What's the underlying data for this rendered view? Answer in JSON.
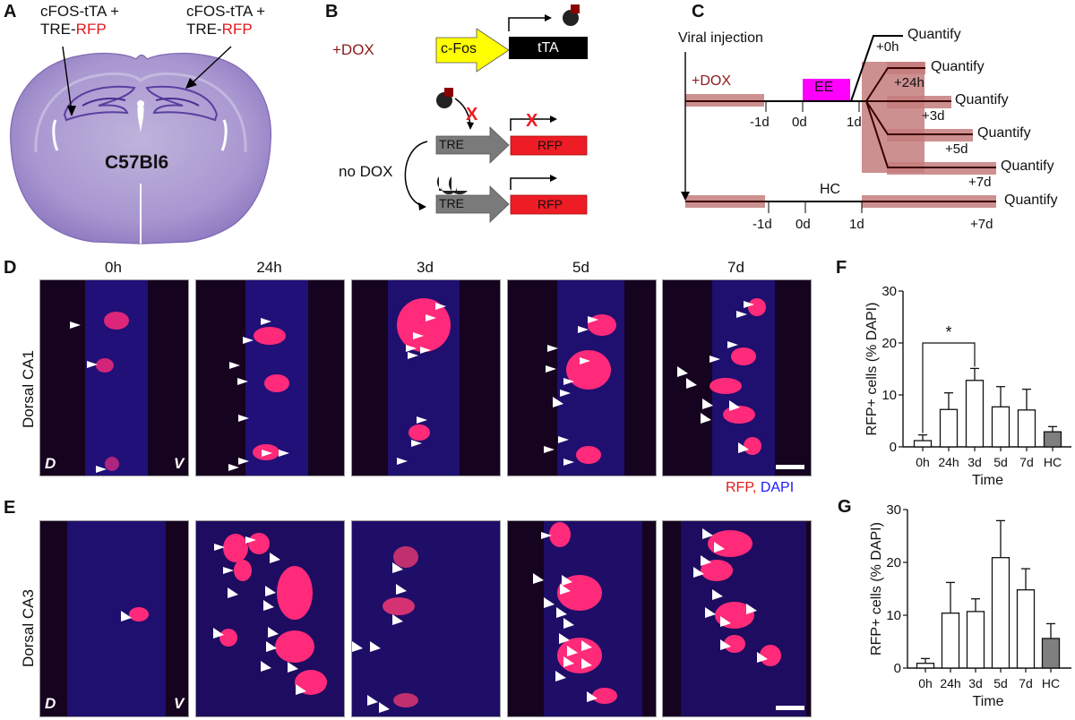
{
  "figure": {
    "panels": {
      "A": {
        "label": "A",
        "annotation_left_line1": "cFOS-tTA +",
        "annotation_left_line2_prefix": "TRE-",
        "annotation_left_line2_red": "RFP",
        "annotation_right_line1": "cFOS-tTA +",
        "annotation_right_line2_prefix": "TRE-",
        "annotation_right_line2_red": "RFP",
        "strain": "C57Bl6"
      },
      "B": {
        "label": "B",
        "dox_plus": "+DOX",
        "dox_none": "no DOX",
        "promoter": "c-Fos",
        "transactivator": "tTA",
        "response_element_1": "TRE",
        "reporter_1": "RFP",
        "response_element_2": "TRE",
        "reporter_2": "RFP",
        "blocked_mark": "X",
        "colors": {
          "cfos": "#ffff00",
          "tta": "#000000",
          "tre": "#7a7a7a",
          "rfp": "#ee1c24",
          "dox": "#8b0000"
        }
      },
      "C": {
        "label": "C",
        "viral_injection": "Viral injection",
        "dox": "+DOX",
        "ee": "EE",
        "hc": "HC",
        "ticks_top": [
          "-1d",
          "0d",
          "1d"
        ],
        "ticks_bottom": [
          "-1d",
          "0d",
          "1d",
          "+7d"
        ],
        "branches": [
          {
            "offset": "+0h",
            "action": "Quantify"
          },
          {
            "offset": "+24h",
            "action": "Quantify"
          },
          {
            "offset": "+3d",
            "action": "Quantify"
          },
          {
            "offset": "+5d",
            "action": "Quantify"
          },
          {
            "offset": "+7d",
            "action": "Quantify"
          }
        ],
        "hc_action": "Quantify",
        "colors": {
          "ee": "#ff00ff",
          "dox_band": "#c47c7c",
          "line": "#000000"
        }
      },
      "D": {
        "label": "D",
        "row_title": "Dorsal CA1",
        "columns": [
          "0h",
          "24h",
          "3d",
          "5d",
          "7d"
        ],
        "orientation_left": "D",
        "orientation_right": "V",
        "stain_red": "RFP",
        "stain_sep": ", ",
        "stain_blue": "DAPI"
      },
      "E": {
        "label": "E",
        "row_title": "Dorsal CA3",
        "orientation_left": "D",
        "orientation_right": "V"
      },
      "F": {
        "label": "F"
      },
      "G": {
        "label": "G"
      }
    }
  },
  "chart_data": [
    {
      "panel": "F",
      "type": "bar",
      "title": "",
      "xlabel": "Time",
      "ylabel": "RFP+ cells (% DAPI)",
      "categories": [
        "0h",
        "24h",
        "3d",
        "5d",
        "7d",
        "HC"
      ],
      "values": [
        1.2,
        7.2,
        12.8,
        7.7,
        7.1,
        2.9
      ],
      "error_upper": [
        2.3,
        10.4,
        15.1,
        11.6,
        11.1,
        3.9
      ],
      "bar_colors": [
        "#ffffff",
        "#ffffff",
        "#ffffff",
        "#ffffff",
        "#ffffff",
        "#7f7f7f"
      ],
      "ylim": [
        0,
        30
      ],
      "yticks": [
        "0",
        "10",
        "20",
        "30"
      ],
      "significance": {
        "from": "0h",
        "to": "3d",
        "y": 20,
        "mark": "*"
      },
      "grid": false
    },
    {
      "panel": "G",
      "type": "bar",
      "title": "",
      "xlabel": "Time",
      "ylabel": "RFP+ cells (% DAPI)",
      "categories": [
        "0h",
        "24h",
        "3d",
        "5d",
        "7d",
        "HC"
      ],
      "values": [
        0.9,
        10.4,
        10.7,
        20.9,
        14.8,
        5.6
      ],
      "error_upper": [
        1.8,
        16.2,
        13.1,
        27.9,
        18.8,
        8.4
      ],
      "bar_colors": [
        "#ffffff",
        "#ffffff",
        "#ffffff",
        "#ffffff",
        "#ffffff",
        "#7f7f7f"
      ],
      "ylim": [
        0,
        30
      ],
      "yticks": [
        "0",
        "10",
        "20",
        "30"
      ],
      "grid": false
    }
  ]
}
